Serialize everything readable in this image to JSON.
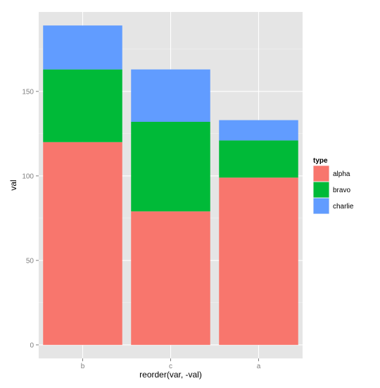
{
  "chart_data": {
    "type": "bar",
    "stacked": true,
    "categories": [
      "b",
      "c",
      "a"
    ],
    "series": [
      {
        "name": "alpha",
        "values": [
          120,
          79,
          99
        ],
        "color": "#F8766D"
      },
      {
        "name": "bravo",
        "values": [
          43,
          53,
          22
        ],
        "color": "#00BA38"
      },
      {
        "name": "charlie",
        "values": [
          26,
          31,
          12
        ],
        "color": "#619CFF"
      }
    ],
    "xlabel": "reorder(var, -val)",
    "ylabel": "val",
    "ylim": [
      -8,
      197
    ],
    "yticks": [
      0,
      50,
      100,
      150
    ],
    "ytick_labels": [
      "0",
      "50",
      "100",
      "150"
    ],
    "grid": true,
    "panel_background": "#E5E5E5",
    "grid_color": "#FFFFFF",
    "legend": {
      "title": "type",
      "position": "right"
    }
  }
}
